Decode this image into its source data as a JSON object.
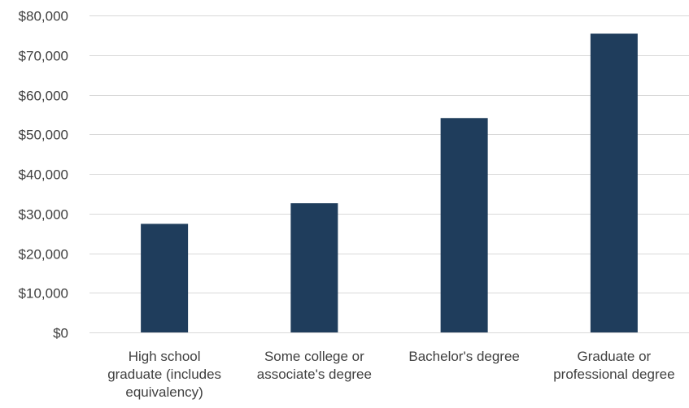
{
  "chart_data": {
    "type": "bar",
    "title": "",
    "xlabel": "",
    "ylabel": "",
    "categories": [
      [
        "High school",
        "graduate (includes",
        "equivalency)"
      ],
      [
        "Some college or",
        "associate's degree"
      ],
      [
        "Bachelor's degree"
      ],
      [
        "Graduate or",
        "professional degree"
      ]
    ],
    "values": [
      27400,
      32600,
      54100,
      75400
    ],
    "ylim": [
      0,
      80000
    ],
    "yticks": [
      0,
      10000,
      20000,
      30000,
      40000,
      50000,
      60000,
      70000,
      80000
    ],
    "ytick_labels": [
      "$0",
      "$10,000",
      "$20,000",
      "$30,000",
      "$40,000",
      "$50,000",
      "$60,000",
      "$70,000",
      "$80,000"
    ],
    "grid": true,
    "legend": "none",
    "bar_color": "#1f3d5c",
    "grid_color": "#d9d9d9",
    "text_color": "#404040"
  }
}
